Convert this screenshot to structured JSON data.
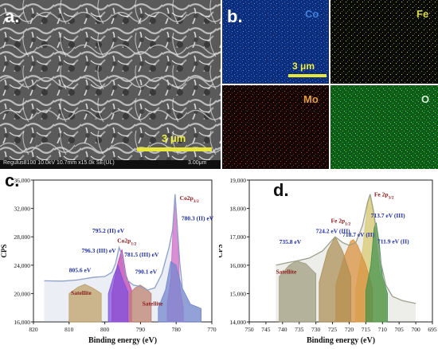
{
  "panels": {
    "a": {
      "letter": "a.",
      "scale_bar_label": "3 μm",
      "info_bar_text": "Regulus8100 10.0kV 10.7mm x15.0k SE(UL)",
      "info_bar_scale": "3.00μm"
    },
    "b": {
      "letter": "b.",
      "scale_bar_label": "3 μm",
      "maps": [
        {
          "element": "Co",
          "color": "#1f5fc8",
          "text_color": "#3f7fe0"
        },
        {
          "element": "Fe",
          "color": "#cfd04a",
          "text_color": "#d8d84e"
        },
        {
          "element": "Mo",
          "color": "#c46a4a",
          "text_color": "#e0a040"
        },
        {
          "element": "O",
          "color": "#2fbf3a",
          "text_color": "#d8f0d8"
        }
      ]
    },
    "c": {
      "letter": "c."
    },
    "d": {
      "letter": "d."
    }
  },
  "chart_data": [
    {
      "type": "line",
      "panel": "c",
      "xlabel": "Binding energy (eV)",
      "ylabel": "CPS",
      "xlim": [
        820,
        770
      ],
      "ylim": [
        16000,
        36000
      ],
      "x_ticks": [
        820,
        810,
        800,
        790,
        780,
        770
      ],
      "y_ticks": [
        16000,
        20000,
        24000,
        28000,
        32000,
        36000
      ],
      "y_tick_labels": [
        "16,000",
        "20,000",
        "24,000",
        "28,000",
        "32,000",
        "36,000"
      ],
      "series": [
        {
          "color": "#8fa0c8",
          "x": [
            817,
            812,
            808,
            803,
            800,
            798,
            797,
            796,
            795.2,
            794,
            792,
            790,
            788,
            786,
            784,
            782,
            781,
            780.3,
            779,
            778,
            776,
            773
          ],
          "y": [
            21800,
            21750,
            21900,
            22300,
            22400,
            23000,
            24200,
            26500,
            25500,
            22000,
            21200,
            21000,
            20500,
            20800,
            22800,
            26500,
            29000,
            34000,
            24500,
            19500,
            18100,
            17900
          ]
        },
        {
          "color": "#e060c8",
          "x": [
            782.5,
            781.5,
            780.8,
            780.3,
            779.7,
            779,
            778
          ],
          "y": [
            18500,
            22000,
            30000,
            34000,
            30000,
            21000,
            18000
          ]
        },
        {
          "color": "#6a7fd0",
          "x": [
            785,
            783,
            781.5,
            780,
            778.5,
            776,
            773
          ],
          "y": [
            18000,
            20500,
            24500,
            24000,
            21000,
            18500,
            17900
          ]
        },
        {
          "color": "#d02aa8",
          "x": [
            798,
            796.5,
            795.2,
            794,
            792.5
          ],
          "y": [
            20000,
            24000,
            26200,
            22500,
            20500
          ]
        },
        {
          "color": "#7a3fe0",
          "x": [
            799,
            797.5,
            796.3,
            795,
            793.5
          ],
          "y": [
            20000,
            22500,
            24000,
            22000,
            20200
          ]
        },
        {
          "color": "#c8a050",
          "x": [
            810,
            807.5,
            805.6,
            803.5,
            801
          ],
          "y": [
            20000,
            20900,
            21300,
            20800,
            20000
          ]
        },
        {
          "color": "#c87858",
          "x": [
            793,
            791.5,
            790.1,
            788.5,
            787
          ],
          "y": [
            20000,
            20800,
            21200,
            20700,
            20000
          ]
        }
      ],
      "annotations": [
        {
          "text": "Co2p3/2",
          "main": "Co2p",
          "sub": "3/2",
          "x": 779,
          "y": 33200,
          "color": "#8b1a1a"
        },
        {
          "text": "780.3 (II) eV",
          "x": 778.5,
          "y": 30300,
          "color": "#1f2f9f"
        },
        {
          "text": "Co2p1/2",
          "main": "Co2p",
          "sub": "1/2",
          "x": 796.5,
          "y": 27200,
          "color": "#8b1a1a"
        },
        {
          "text": "795.2 (II) eV",
          "x": 803.5,
          "y": 28600,
          "color": "#1f2f9f"
        },
        {
          "text": "796.3 (III) eV",
          "x": 806.5,
          "y": 25800,
          "color": "#1f2f9f"
        },
        {
          "text": "781.5 (III) eV",
          "x": 794.5,
          "y": 25200,
          "color": "#1f2f9f"
        },
        {
          "text": "805.6 eV",
          "x": 810,
          "y": 23000,
          "color": "#1f2f9f"
        },
        {
          "text": "790.1 eV",
          "x": 791.5,
          "y": 22800,
          "color": "#1f2f9f"
        },
        {
          "text": "Satellite",
          "x": 809.5,
          "y": 19800,
          "color": "#8b1a1a"
        },
        {
          "text": "Satellite",
          "x": 789.5,
          "y": 18300,
          "color": "#8b1a1a"
        }
      ]
    },
    {
      "type": "line",
      "panel": "d",
      "xlabel": "Binding energy (eV)",
      "ylabel": "CPS",
      "xlim": [
        750,
        695
      ],
      "ylim": [
        14000,
        19000
      ],
      "x_ticks": [
        750,
        745,
        740,
        735,
        730,
        725,
        720,
        715,
        710,
        705,
        700,
        695
      ],
      "y_ticks": [
        14000,
        15000,
        16000,
        17000,
        18000,
        19000
      ],
      "y_tick_labels": [
        "14,000",
        "15,000",
        "16,000",
        "17,000",
        "18,000",
        "19,000"
      ],
      "series": [
        {
          "color": "#9aa08a",
          "x": [
            742,
            738,
            735.8,
            732,
            728,
            725,
            724.2,
            722,
            720,
            718,
            716,
            714.5,
            713.7,
            712.5,
            711.9,
            710.5,
            709,
            707,
            704,
            700
          ],
          "y": [
            16000,
            16100,
            16150,
            16250,
            16500,
            16900,
            17000,
            16800,
            16700,
            16800,
            17400,
            18200,
            18500,
            17800,
            17200,
            16100,
            15300,
            14900,
            14750,
            14650
          ]
        },
        {
          "color": "#e6d26a",
          "x": [
            718,
            716,
            714.5,
            713.7,
            712.5,
            711,
            709
          ],
          "y": [
            15200,
            16500,
            18100,
            18500,
            17600,
            15800,
            15000
          ]
        },
        {
          "color": "#e68a2a",
          "x": [
            724,
            721.5,
            719.5,
            718.7,
            717.5,
            715,
            713
          ],
          "y": [
            15300,
            16300,
            16850,
            16900,
            16700,
            16000,
            15200
          ]
        },
        {
          "color": "#2e8f3e",
          "x": [
            715,
            713.5,
            712.5,
            711.9,
            711,
            710,
            708.5
          ],
          "y": [
            15100,
            16000,
            17300,
            17500,
            16800,
            15600,
            15000
          ]
        },
        {
          "color": "#b08a4a",
          "x": [
            729,
            726.5,
            724.2,
            722,
            719.5
          ],
          "y": [
            15400,
            16500,
            17000,
            16500,
            15600
          ]
        },
        {
          "color": "#a09a7a",
          "x": [
            741,
            738,
            735.8,
            733,
            730
          ],
          "y": [
            15600,
            16000,
            16150,
            16050,
            15700
          ]
        }
      ],
      "annotations": [
        {
          "text": "Fe 2p3/2",
          "main": "Fe 2p",
          "sub": "3/2",
          "x": 712.5,
          "y": 18430,
          "color": "#8b1a1a"
        },
        {
          "text": "Fe 2p1/2",
          "main": "Fe 2p",
          "sub": "1/2",
          "x": 725.5,
          "y": 17500,
          "color": "#8b1a1a"
        },
        {
          "text": "713.7 eV (III)",
          "x": 713.5,
          "y": 17680,
          "color": "#1f2f9f"
        },
        {
          "text": "724.2 eV (III)",
          "x": 730,
          "y": 17130,
          "color": "#1f2f9f"
        },
        {
          "text": "718.7 eV (II)",
          "x": 722,
          "y": 17000,
          "color": "#1f2f9f"
        },
        {
          "text": "711.9 eV (II)",
          "x": 711.5,
          "y": 16760,
          "color": "#1f2f9f"
        },
        {
          "text": "735.8 eV",
          "x": 741,
          "y": 16750,
          "color": "#1f2f9f"
        },
        {
          "text": "Satellite",
          "x": 742,
          "y": 15700,
          "color": "#8b1a1a"
        }
      ]
    }
  ]
}
